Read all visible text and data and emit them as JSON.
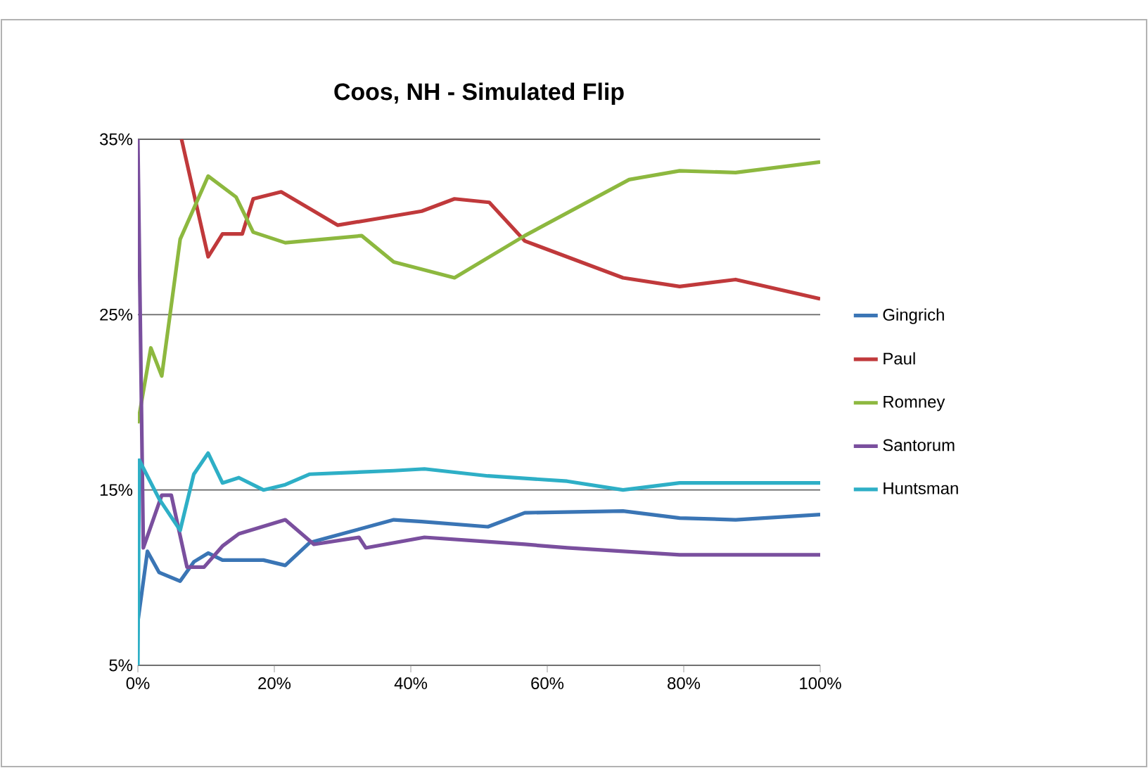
{
  "chart_data": {
    "type": "line",
    "title": "Coos, NH - Simulated Flip",
    "xlim": [
      0,
      100
    ],
    "ylim": [
      5,
      35
    ],
    "xticks": [
      {
        "value": 0,
        "label": "0%"
      },
      {
        "value": 20,
        "label": "20%"
      },
      {
        "value": 40,
        "label": "40%"
      },
      {
        "value": 60,
        "label": "60%"
      },
      {
        "value": 80,
        "label": "80%"
      },
      {
        "value": 100,
        "label": "100%"
      }
    ],
    "yticks": [
      {
        "value": 5,
        "label": "5%"
      },
      {
        "value": 15,
        "label": "15%"
      },
      {
        "value": 25,
        "label": "25%"
      },
      {
        "value": 35,
        "label": "35%"
      }
    ],
    "grid": "y",
    "legend": "right",
    "marker": "none",
    "line_style": "solid",
    "series": [
      {
        "name": "Gingrich",
        "color": "#3a75b5",
        "x": [
          0,
          1.4,
          3.1,
          6.2,
          8.2,
          10.3,
          12.4,
          18.4,
          21.6,
          25.2,
          37.5,
          41.6,
          51.3,
          56.7,
          71.1,
          79.4,
          87.6,
          100
        ],
        "values": [
          7.5,
          11.5,
          10.3,
          9.8,
          10.9,
          11.4,
          11.0,
          11.0,
          10.7,
          12.0,
          13.3,
          13.2,
          12.9,
          13.7,
          13.8,
          13.4,
          13.3,
          13.6
        ]
      },
      {
        "name": "Paul",
        "color": "#c0393b",
        "x": [
          6.4,
          10.3,
          12.4,
          15.3,
          16.9,
          21,
          29.3,
          35.5,
          41.6,
          46.4,
          51.5,
          56.7,
          71.1,
          79.4,
          87.6,
          100
        ],
        "values": [
          35,
          28.3,
          29.6,
          29.6,
          31.6,
          32.0,
          30.1,
          30.5,
          30.9,
          31.6,
          31.4,
          29.2,
          27.1,
          26.6,
          27.0,
          25.9
        ]
      },
      {
        "name": "Romney",
        "color": "#8db83f",
        "x": [
          0,
          1.9,
          3.5,
          6.2,
          10.3,
          14.4,
          16.9,
          21.6,
          32.8,
          37.5,
          46.4,
          56.7,
          72,
          79.4,
          87.6,
          100
        ],
        "values": [
          18.8,
          23.1,
          21.5,
          29.3,
          32.9,
          31.7,
          29.7,
          29.1,
          29.5,
          28.0,
          27.1,
          29.5,
          32.7,
          33.2,
          33.1,
          33.7
        ]
      },
      {
        "name": "Santorum",
        "color": "#7a4f9e",
        "x": [
          0,
          0.8,
          3.5,
          4.9,
          7.2,
          9.7,
          12.4,
          14.8,
          21.6,
          25.8,
          32.4,
          33.4,
          42,
          56.7,
          62.9,
          71.1,
          79.4,
          100
        ],
        "values": [
          35,
          11.7,
          14.7,
          14.7,
          10.6,
          10.6,
          11.8,
          12.5,
          13.3,
          11.9,
          12.3,
          11.7,
          12.3,
          11.9,
          11.7,
          11.5,
          11.3,
          11.3
        ]
      },
      {
        "name": "Huntsman",
        "color": "#2eafc6",
        "x": [
          0,
          0.2,
          3.1,
          6.2,
          8.2,
          10.3,
          12.4,
          14.8,
          18.4,
          21.6,
          25.2,
          37.5,
          42,
          51.3,
          62.9,
          71.1,
          79.4,
          100
        ],
        "values": [
          5,
          16.7,
          14.5,
          12.7,
          15.9,
          17.1,
          15.4,
          15.7,
          15.0,
          15.3,
          15.9,
          16.1,
          16.2,
          15.8,
          15.5,
          15.0,
          15.4,
          15.4
        ]
      }
    ]
  }
}
